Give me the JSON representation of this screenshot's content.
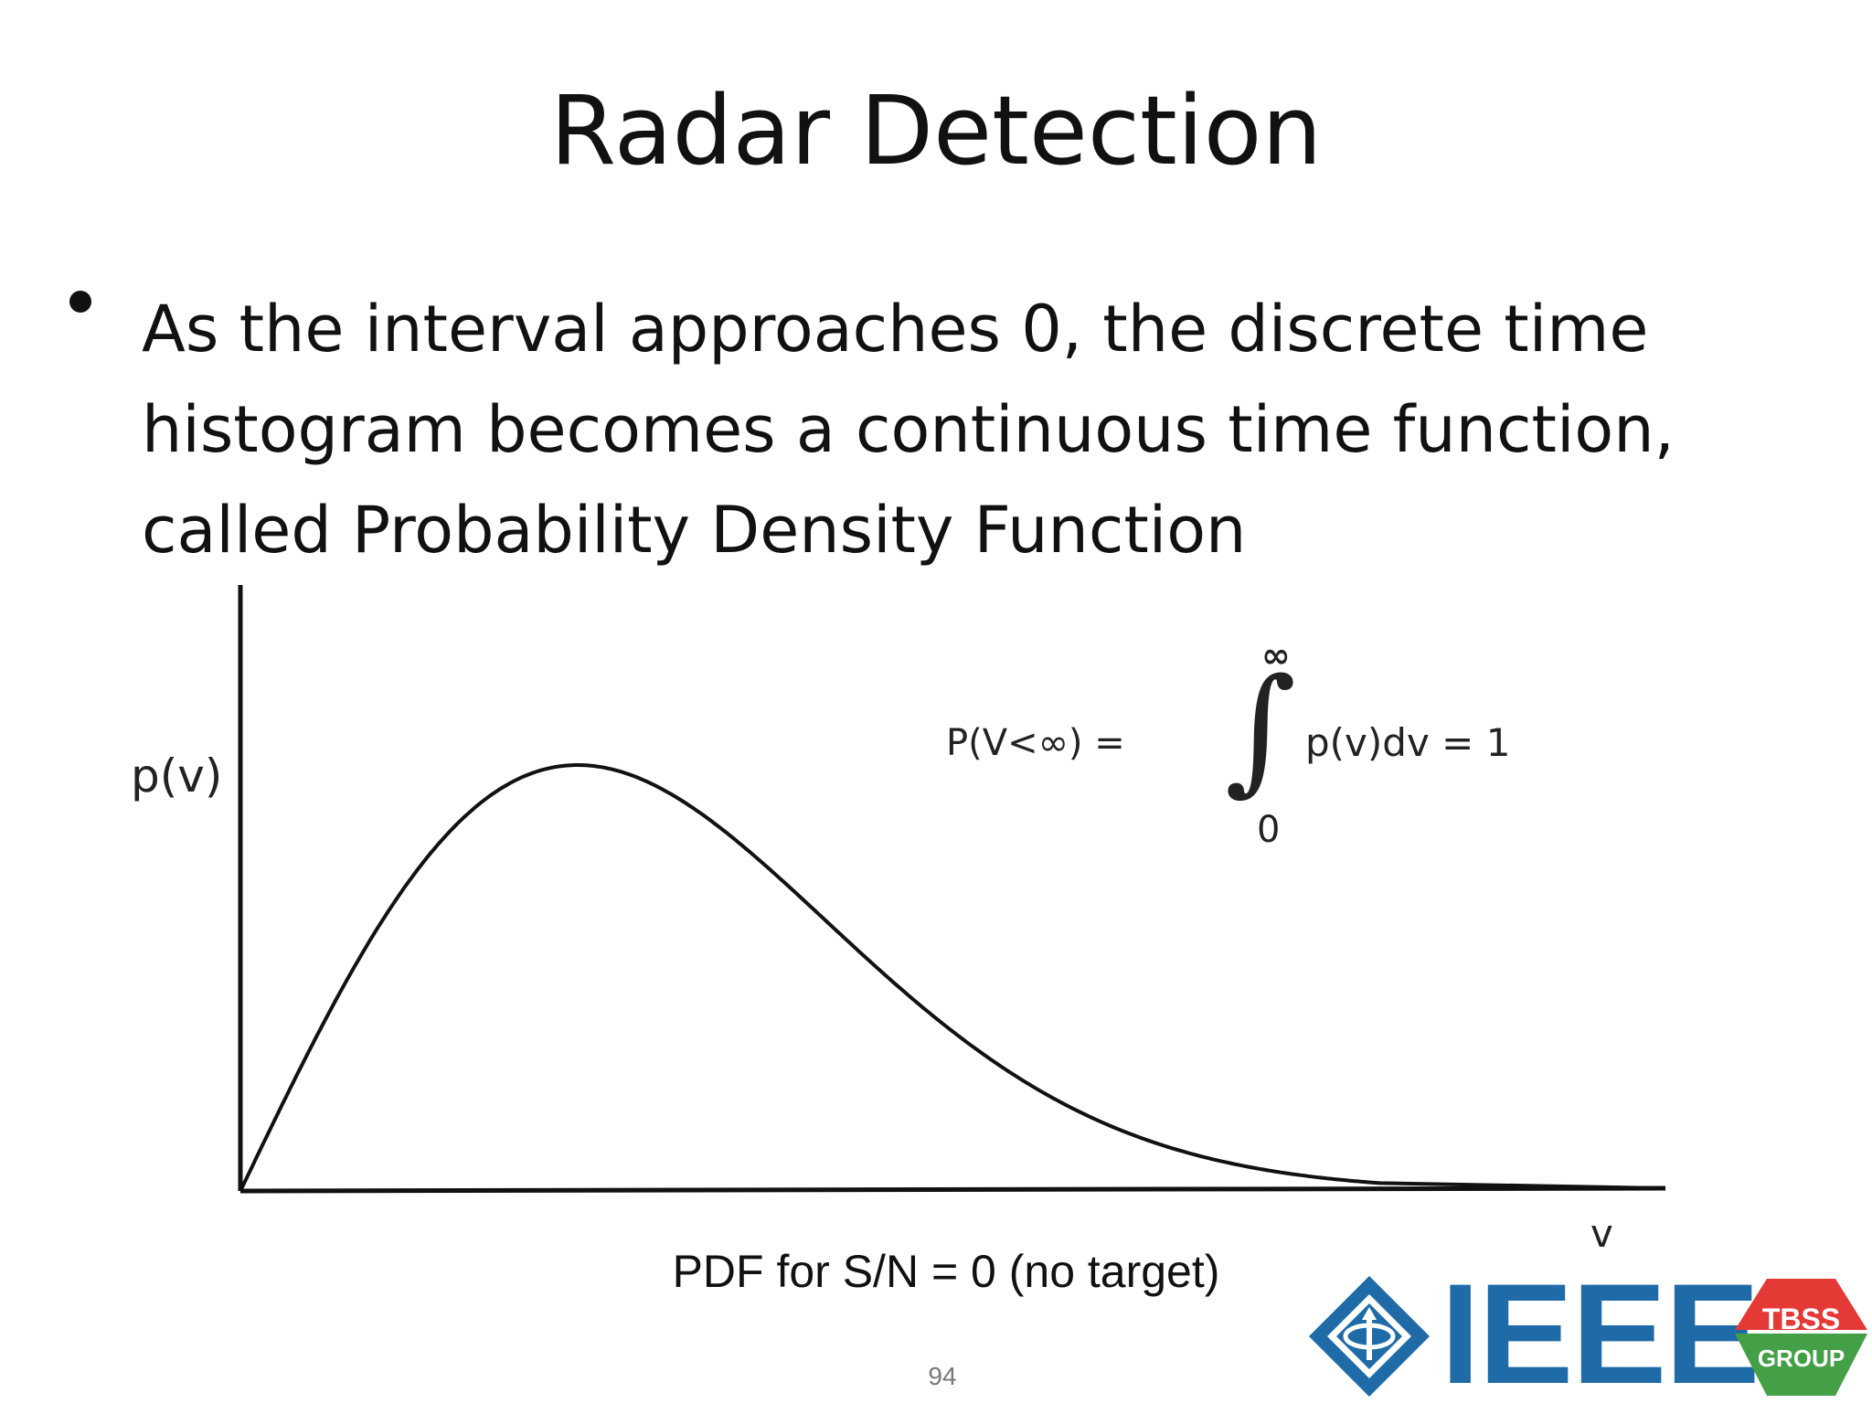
{
  "slide": {
    "title": "Radar Detection",
    "bullet": "As the interval approaches 0, the discrete time histogram becomes a continuous time function, called Probability Density Function",
    "caption": "PDF for S/N = 0 (no target)",
    "page_number": "94"
  },
  "figure": {
    "y_axis_label": "p(v)",
    "x_axis_label": "v",
    "formula": {
      "lhs": "P(V<∞) =",
      "integral_upper": "∞",
      "integral_sign": "∫",
      "integral_lower": "0",
      "rhs": "p(v)dv = 1"
    },
    "curve_shape": "rayleigh",
    "axis_color": "#111111"
  },
  "logos": {
    "ieee": {
      "text": "IEEE",
      "color": "#1f6ba8",
      "icon": "ieee-diamond-icon"
    },
    "tbss": {
      "top": "TBSS",
      "bottom": "GROUP",
      "top_color": "#e53935",
      "bottom_color": "#43a047"
    }
  }
}
